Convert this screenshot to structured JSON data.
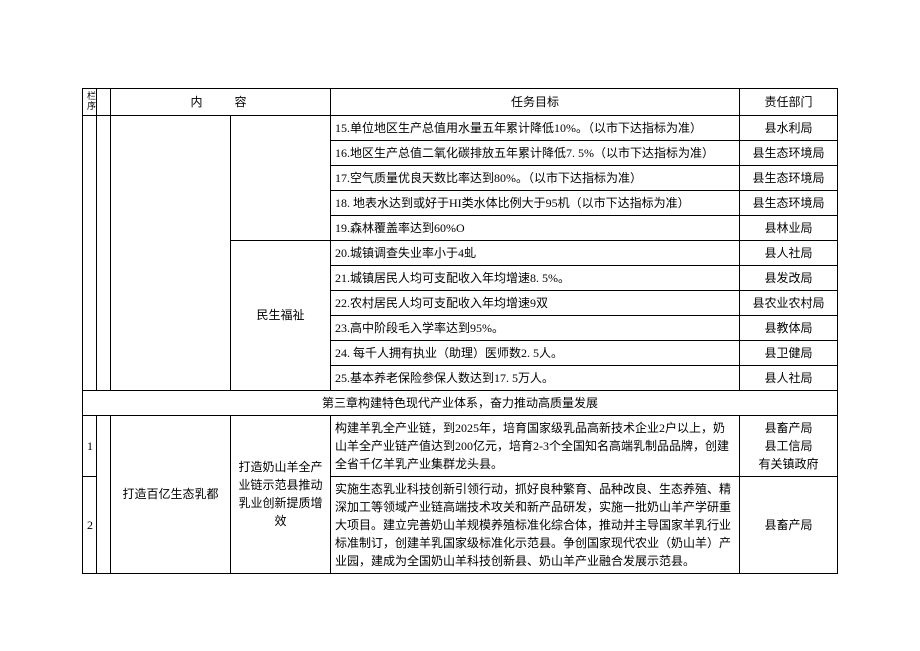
{
  "header": {
    "idx_top": "栏",
    "idx_bot": "序",
    "sub": "",
    "content": "内容",
    "task": "任务目标",
    "dept": "责任部门"
  },
  "rows_top": [
    {
      "task": "15.单位地区生产总值用水量五年累计降低10%。（以市下达指标为准）",
      "dept": "县水利局"
    },
    {
      "task": "16.地区生产总值二氧化碳排放五年累计降低7. 5%（以市下达指标为准）",
      "dept": "县生态环境局"
    },
    {
      "task": "17.空气质量优良天数比率达到80%。（以市下达指标为准）",
      "dept": "县生态环境局"
    },
    {
      "task": "18. 地表水达到或好于HI类水体比例大于95机（以市下达指标为准）",
      "dept": "县生态环境局"
    },
    {
      "task": "19.森林覆盖率达到60%O",
      "dept": "县林业局"
    }
  ],
  "minsheng_label": "民生福祉",
  "rows_minsheng": [
    {
      "task": "20.城镇调查失业率小于4虬",
      "dept": "县人社局"
    },
    {
      "task": "21.城镇居民人均可支配收入年均增速8. 5%。",
      "dept": "县发改局"
    },
    {
      "task": "22.农村居民人均可支配收入年均增速9双",
      "dept": "县农业农村局"
    },
    {
      "task": "23.高中阶段毛入学率达到95%。",
      "dept": "县教体局"
    },
    {
      "task": "24. 每千人拥有执业（助理）医师数2. 5人。",
      "dept": "县卫健局"
    },
    {
      "task": "25.基本养老保险参保人数达到17. 5万人。",
      "dept": "县人社局"
    }
  ],
  "chapter": "第三章构建特色现代产业体系，奋力推动高质量发展",
  "block": {
    "main_label": "打造百亿生态乳都",
    "sub_label": "打造奶山羊全产业链示范县推动乳业创新提质增效",
    "r1": {
      "idx": "1",
      "task": "构建羊乳全产业链，到2025年，培育国家级乳品高新技术企业2户以上，奶山羊全产业链产值达到200亿元，培育2-3个全国知名高端乳制品品牌，创建全省千亿羊乳产业集群龙头县。",
      "dept": "县畜产局\n县工信局\n有关镇政府"
    },
    "r2": {
      "idx": "2",
      "task": "实施生态乳业科技创新引领行动，抓好良种繁育、品种改良、生态养殖、精深加工等领域产业链高端技术攻关和新产品研发，实施一批奶山羊产学研重大项目。建立完善奶山羊规模养殖标准化综合体，推动并主导国家羊乳行业标准制订，创建羊乳国家级标准化示范县。争创国家现代农业（奶山羊）产业园，建成为全国奶山羊科技创新县、奶山羊产业融合发展示范县。",
      "dept": "县畜产局"
    }
  }
}
